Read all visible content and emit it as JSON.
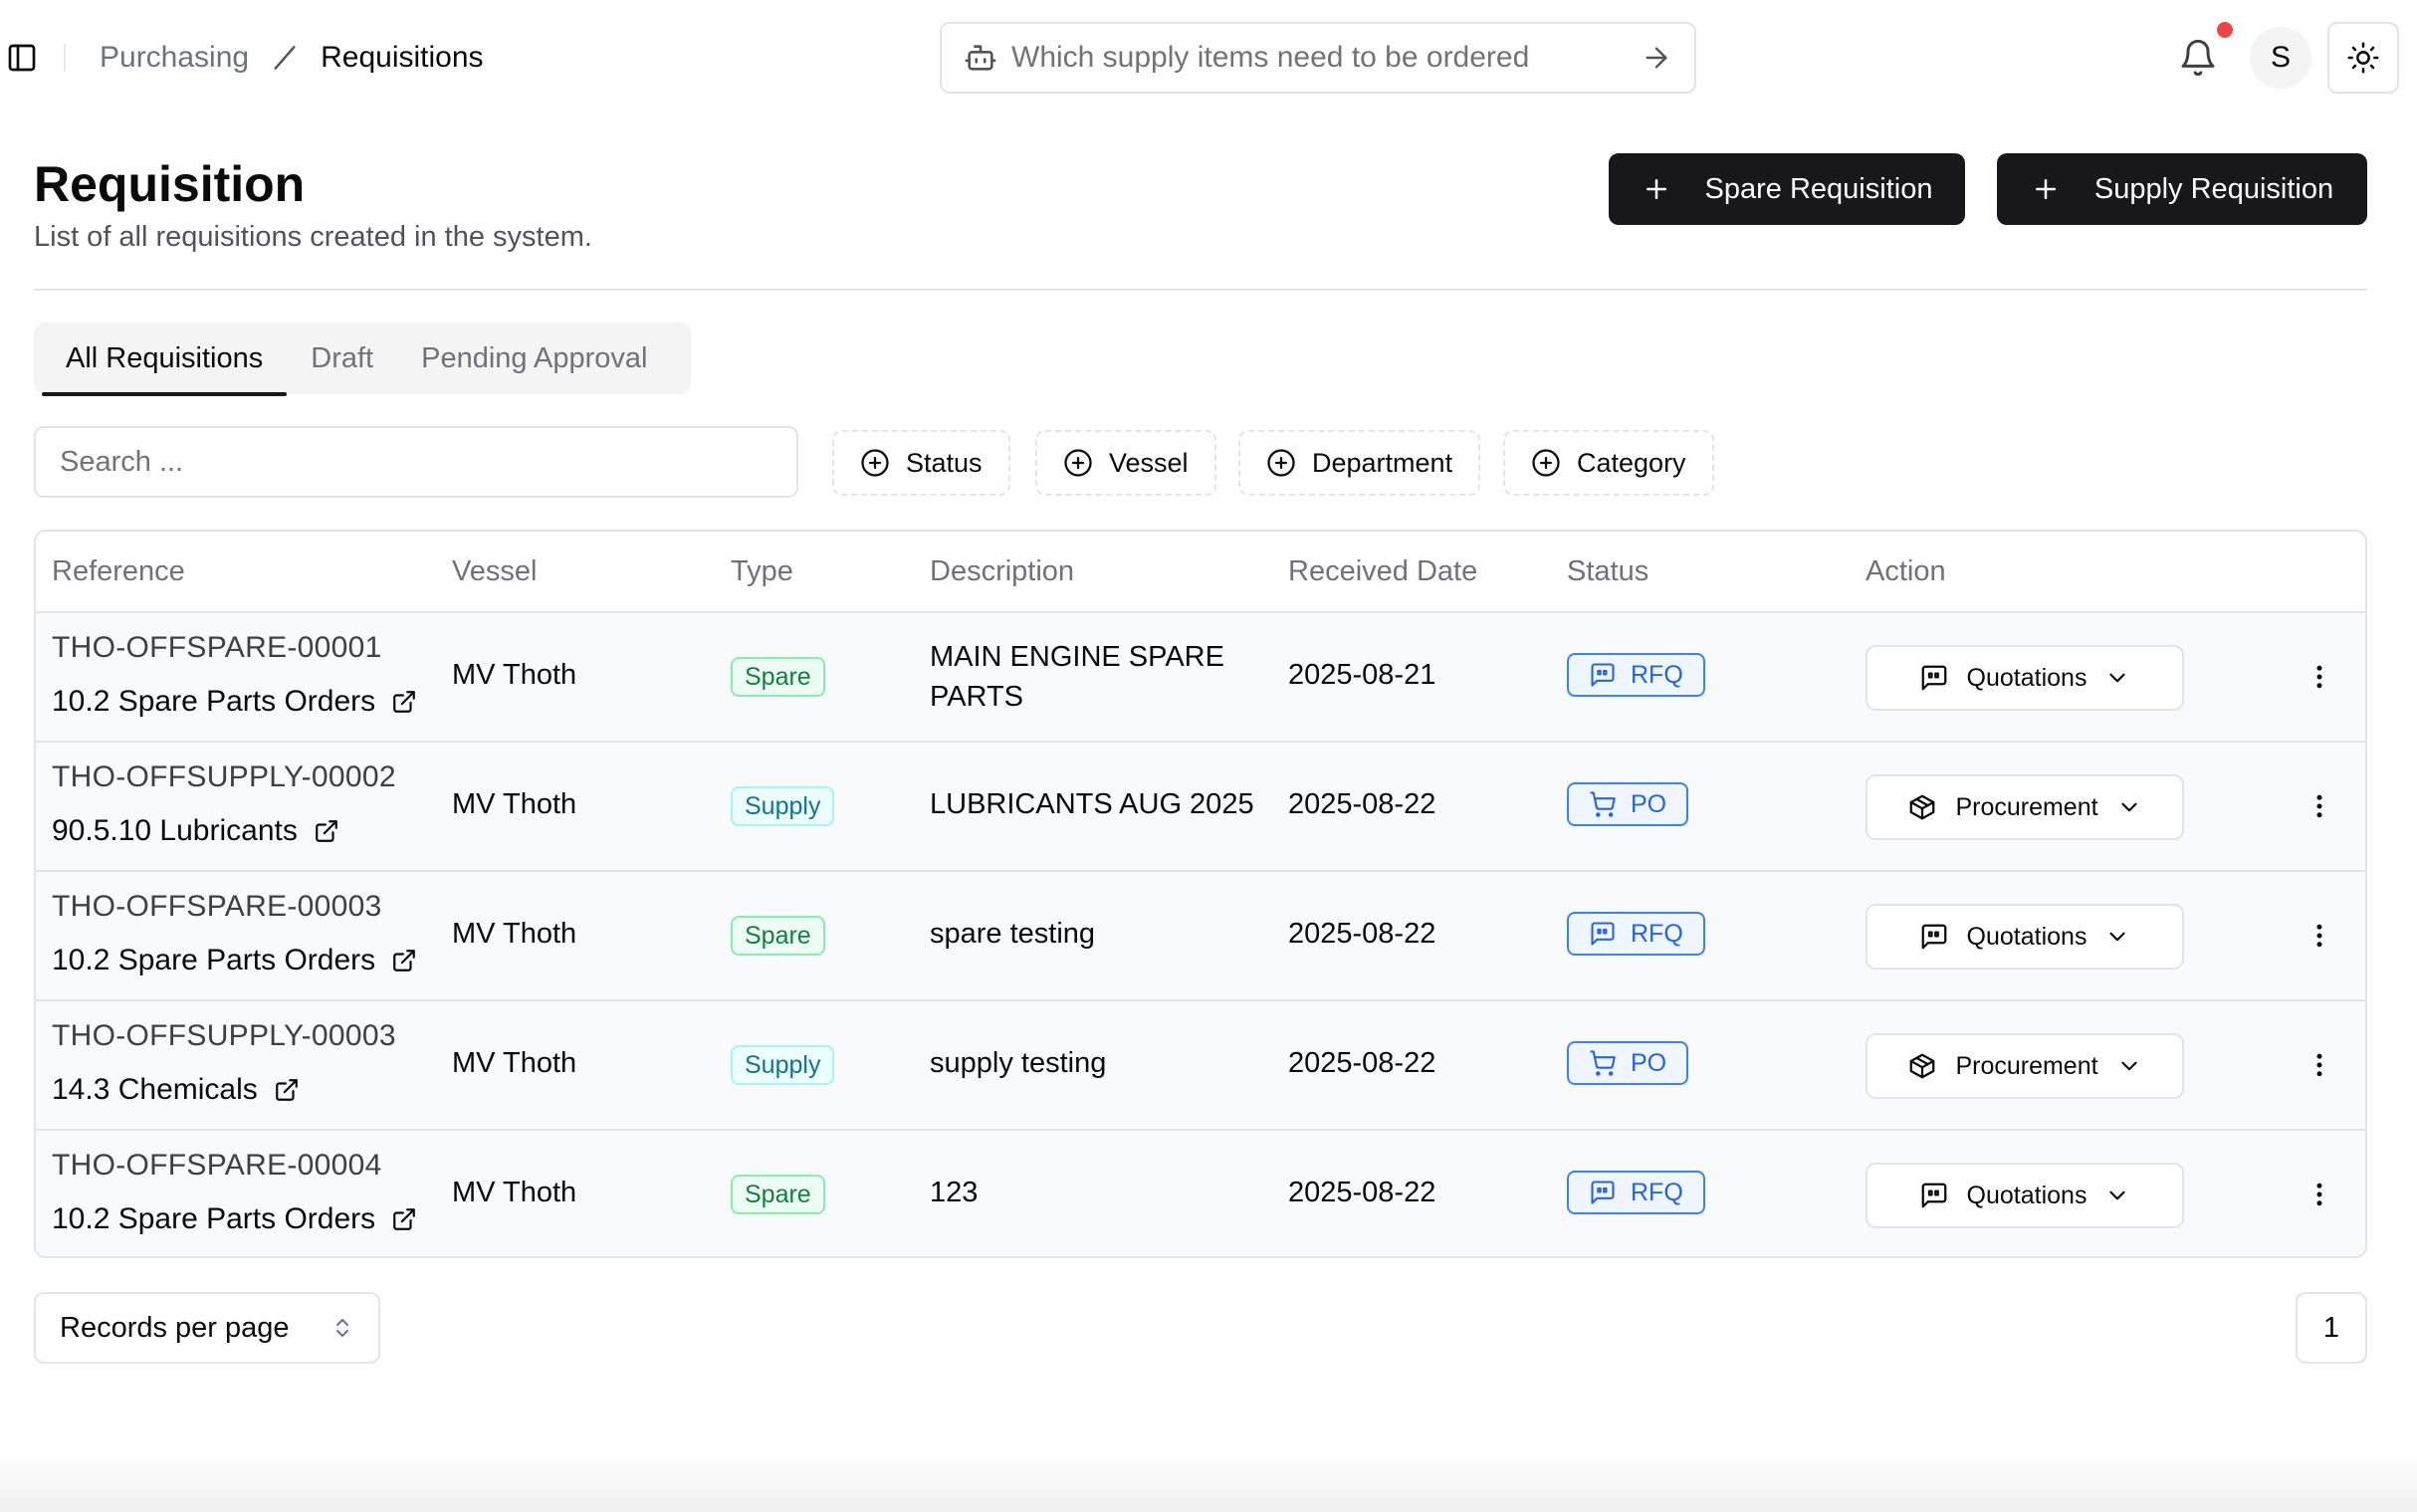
{
  "breadcrumb": {
    "parent": "Purchasing",
    "current": "Requisitions"
  },
  "ai_search": {
    "placeholder": "Which supply items need to be ordered"
  },
  "user": {
    "initial": "S"
  },
  "header": {
    "title": "Requisition",
    "subtitle": "List of all requisitions created in the system.",
    "spare_button": "Spare Requisition",
    "supply_button": "Supply Requisition"
  },
  "tabs": [
    {
      "label": "All Requisitions",
      "active": true
    },
    {
      "label": "Draft",
      "active": false
    },
    {
      "label": "Pending Approval",
      "active": false
    }
  ],
  "filters": {
    "search_placeholder": "Search ...",
    "status": "Status",
    "vessel": "Vessel",
    "department": "Department",
    "category": "Category"
  },
  "table": {
    "columns": [
      "Reference",
      "Vessel",
      "Type",
      "Description",
      "Received Date",
      "Status",
      "Action"
    ],
    "rows": [
      {
        "reference": "THO-OFFSPARE-00001",
        "category": "10.2 Spare Parts Orders",
        "vessel": "MV Thoth",
        "type": "Spare",
        "description": "MAIN ENGINE SPARE PARTS",
        "date": "2025-08-21",
        "status": "RFQ",
        "action": "Quotations"
      },
      {
        "reference": "THO-OFFSUPPLY-00002",
        "category": "90.5.10 Lubricants",
        "vessel": "MV Thoth",
        "type": "Supply",
        "description": "LUBRICANTS AUG 2025",
        "date": "2025-08-22",
        "status": "PO",
        "action": "Procurement"
      },
      {
        "reference": "THO-OFFSPARE-00003",
        "category": "10.2 Spare Parts Orders",
        "vessel": "MV Thoth",
        "type": "Spare",
        "description": "spare testing",
        "date": "2025-08-22",
        "status": "RFQ",
        "action": "Quotations"
      },
      {
        "reference": "THO-OFFSUPPLY-00003",
        "category": "14.3 Chemicals",
        "vessel": "MV Thoth",
        "type": "Supply",
        "description": "supply testing",
        "date": "2025-08-22",
        "status": "PO",
        "action": "Procurement"
      },
      {
        "reference": "THO-OFFSPARE-00004",
        "category": "10.2 Spare Parts Orders",
        "vessel": "MV Thoth",
        "type": "Spare",
        "description": "123",
        "date": "2025-08-22",
        "status": "RFQ",
        "action": "Quotations"
      }
    ]
  },
  "footer": {
    "records_per_page": "Records per page",
    "page": "1"
  },
  "colors": {
    "primary": "#18181b",
    "status_blue": "#2563eb",
    "spare_green": "#15803d",
    "supply_cyan": "#0e7490",
    "notification_dot": "#ef4444"
  }
}
